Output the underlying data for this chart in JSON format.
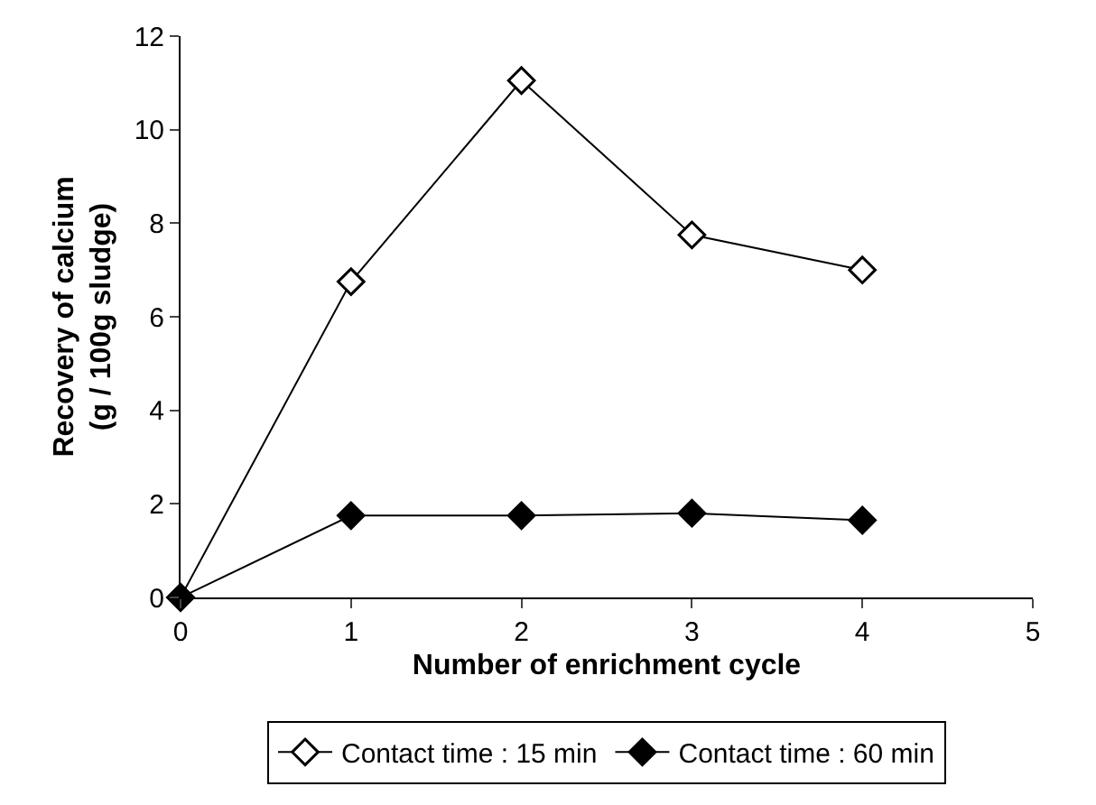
{
  "chart_data": {
    "type": "line",
    "xlabel": "Number of enrichment cycle",
    "ylabel": "Recovery of calcium\n(g / 100g sludge)",
    "x": [
      0,
      1,
      2,
      3,
      4
    ],
    "series": [
      {
        "name": "Contact time : 15 min",
        "color": "#ffffff",
        "values": [
          0,
          6.75,
          11.05,
          7.75,
          7.0
        ]
      },
      {
        "name": "Contact time : 60 min",
        "color": "#000000",
        "values": [
          0,
          1.75,
          1.75,
          1.8,
          1.65
        ]
      }
    ],
    "xlim": [
      0,
      5
    ],
    "xticks": [
      0,
      1,
      2,
      3,
      4,
      5
    ],
    "ylim": [
      0,
      12
    ],
    "yticks": [
      0,
      2,
      4,
      6,
      8,
      10,
      12
    ],
    "legend": "bottom",
    "marker": "diamond",
    "line_style": "solid"
  }
}
